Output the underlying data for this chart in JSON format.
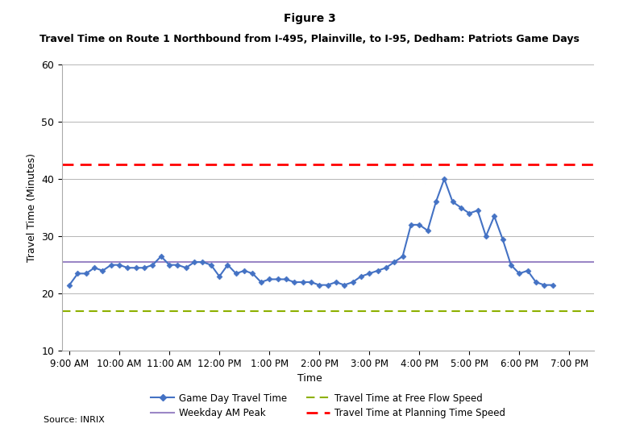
{
  "title_line1": "Figure 3",
  "title_line2": "Travel Time on Route 1 Northbound from I-495, Plainville, to I-95, Dedham: Patriots Game Days",
  "xlabel": "Time",
  "ylabel": "Travel Time (Minutes)",
  "source": "Source: INRIX",
  "ylim": [
    10,
    60
  ],
  "yticks": [
    10,
    20,
    30,
    40,
    50,
    60
  ],
  "weekday_am_peak": 25.5,
  "free_flow_speed": 17.0,
  "planning_time_speed": 42.5,
  "game_day_color": "#4472C4",
  "weekday_peak_color": "#9B87C6",
  "free_flow_color": "#8DB000",
  "planning_time_color": "#FF0000",
  "time_labels": [
    "9:00 AM",
    "10:00 AM",
    "11:00 AM",
    "12:00 PM",
    "1:00 PM",
    "2:00 PM",
    "3:00 PM",
    "4:00 PM",
    "5:00 PM",
    "6:00 PM",
    "7:00 PM"
  ],
  "game_day_minutes": [
    0,
    10,
    20,
    30,
    40,
    50,
    60,
    70,
    80,
    90,
    100,
    110,
    120,
    130,
    140,
    150,
    160,
    170,
    180,
    190,
    200,
    210,
    220,
    230,
    240,
    250,
    260,
    270,
    280,
    290,
    300,
    310,
    320,
    330,
    340,
    350,
    360,
    370,
    380,
    390,
    400,
    410,
    420,
    430,
    440,
    450,
    460,
    470,
    480,
    490,
    500,
    510,
    520,
    530,
    540,
    550,
    560,
    570,
    580
  ],
  "game_day_y": [
    21.5,
    23.5,
    23.5,
    24.5,
    24.0,
    25.0,
    25.0,
    24.5,
    24.5,
    24.5,
    25.0,
    26.5,
    25.0,
    25.0,
    24.5,
    25.5,
    25.5,
    25.0,
    23.0,
    25.0,
    23.5,
    24.0,
    23.5,
    22.0,
    22.5,
    22.5,
    22.5,
    22.0,
    22.0,
    22.0,
    21.5,
    21.5,
    22.0,
    21.5,
    22.0,
    23.0,
    23.5,
    24.0,
    24.5,
    25.5,
    26.5,
    32.0,
    32.0,
    31.0,
    36.0,
    40.0,
    36.0,
    35.0,
    34.0,
    34.5,
    30.0,
    33.5,
    29.5,
    25.0,
    23.5,
    24.0,
    22.0,
    21.5,
    21.5
  ],
  "bg_color": "#FFFFFF",
  "grid_color": "#AAAAAA"
}
